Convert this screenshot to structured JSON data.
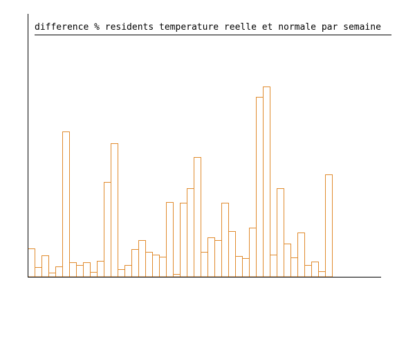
{
  "chart_data": {
    "type": "bar",
    "title": "difference % residents temperature reelle et normale par semaine",
    "xlabel": "",
    "ylabel": "",
    "ylim": [
      0,
      380
    ],
    "grid": false,
    "legend": "none",
    "bar_color": "#e08a2c",
    "series": [
      {
        "values": [
          41,
          14,
          31,
          6,
          15,
          210,
          21,
          17,
          21,
          7,
          23,
          137,
          193,
          11,
          17,
          40,
          53,
          36,
          32,
          29,
          108,
          4,
          107,
          128,
          173,
          36,
          57,
          53,
          107,
          66,
          30,
          27,
          71,
          260,
          275,
          32,
          128,
          48,
          28,
          64,
          17,
          22,
          8,
          148
        ]
      }
    ]
  }
}
